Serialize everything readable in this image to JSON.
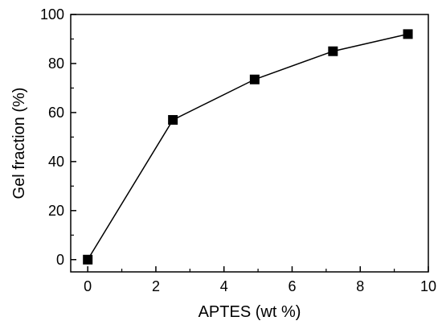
{
  "chart_data": {
    "type": "line",
    "title": "",
    "xlabel": "APTES (wt %)",
    "ylabel": "Gel fraction (%)",
    "xlim": [
      -0.5,
      10
    ],
    "ylim": [
      -5,
      100
    ],
    "xticks": [
      0,
      2,
      4,
      6,
      8,
      10
    ],
    "xtick_labels": [
      "0",
      "2",
      "4",
      "6",
      "8",
      "10"
    ],
    "yticks": [
      0,
      20,
      40,
      60,
      80,
      100
    ],
    "ytick_labels": [
      "0",
      "20",
      "40",
      "60",
      "80",
      "100"
    ],
    "grid": false,
    "legend": "none",
    "marker": "square",
    "color": "#000000",
    "series": [
      {
        "x": [
          0,
          2.5,
          4.9,
          7.2,
          9.4
        ],
        "y": [
          0,
          57,
          73.5,
          85,
          92
        ]
      }
    ]
  }
}
